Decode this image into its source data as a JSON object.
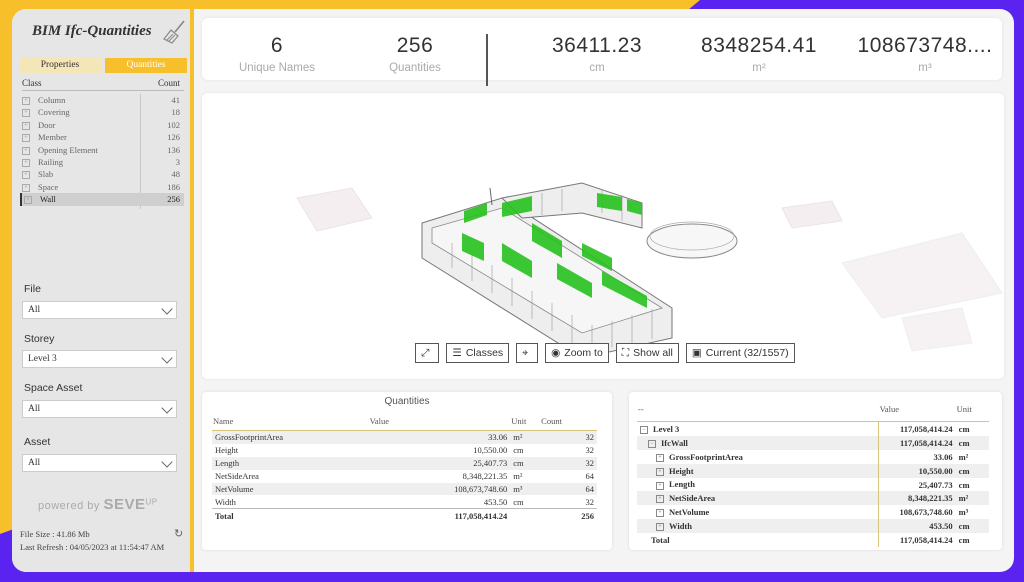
{
  "colors": {
    "accent": "#f7bf2a",
    "brand_purple": "#5a23f0",
    "highlight_green": "#27c21e"
  },
  "app": {
    "title": "BIM Ifc-Quantities"
  },
  "tabs": {
    "properties": "Properties",
    "quantities": "Quantities"
  },
  "class_table": {
    "header_class": "Class",
    "header_count": "Count",
    "rows": [
      {
        "name": "Column",
        "count": "41"
      },
      {
        "name": "Covering",
        "count": "18"
      },
      {
        "name": "Door",
        "count": "102"
      },
      {
        "name": "Member",
        "count": "126"
      },
      {
        "name": "Opening Element",
        "count": "136"
      },
      {
        "name": "Railing",
        "count": "3"
      },
      {
        "name": "Slab",
        "count": "48"
      },
      {
        "name": "Space",
        "count": "186"
      },
      {
        "name": "Wall",
        "count": "256"
      }
    ]
  },
  "filters": {
    "file": {
      "label": "File",
      "value": "All"
    },
    "storey": {
      "label": "Storey",
      "value": "Level 3"
    },
    "space_asset": {
      "label": "Space Asset",
      "value": "All"
    },
    "asset": {
      "label": "Asset",
      "value": "All"
    }
  },
  "branding": {
    "powered_by": "powered by",
    "brand": "SEVE",
    "brand_sup": "UP"
  },
  "meta": {
    "file_size": "File Size : 41.86 Mb",
    "last_refresh": "Last Refresh : 04/05/2023 at 11:54:47 AM"
  },
  "kpis": [
    {
      "value": "6",
      "label": "Unique Names"
    },
    {
      "value": "256",
      "label": "Quantities"
    },
    {
      "value": "36411.23",
      "label": "cm"
    },
    {
      "value": "8348254.41",
      "label": "m²"
    },
    {
      "value": "108673748....",
      "label": "m³"
    }
  ],
  "viewer_buttons": {
    "fit": "",
    "classes": "Classes",
    "target": "",
    "zoom": "Zoom to",
    "show_all": "Show all",
    "current": "Current (32/1557)"
  },
  "quantities_table": {
    "title": "Quantities",
    "headers": [
      "Name",
      "Value",
      "Unit",
      "Count"
    ],
    "rows": [
      [
        "GrossFootprintArea",
        "33.06",
        "m²",
        "32"
      ],
      [
        "Height",
        "10,550.00",
        "cm",
        "32"
      ],
      [
        "Length",
        "25,407.73",
        "cm",
        "32"
      ],
      [
        "NetSideArea",
        "8,348,221.35",
        "m²",
        "64"
      ],
      [
        "NetVolume",
        "108,673,748.60",
        "m³",
        "64"
      ],
      [
        "Width",
        "453.50",
        "cm",
        "32"
      ]
    ],
    "total": [
      "Total",
      "117,058,414.24",
      "",
      "256"
    ]
  },
  "matrix_table": {
    "headers": [
      "--",
      "Value",
      "Unit"
    ],
    "rows": [
      {
        "name": "Level 3",
        "value": "117,058,414.24",
        "unit": "cm"
      },
      {
        "name": "IfcWall",
        "value": "117,058,414.24",
        "unit": "cm"
      },
      {
        "name": "GrossFootprintArea",
        "value": "33.06",
        "unit": "m²"
      },
      {
        "name": "Height",
        "value": "10,550.00",
        "unit": "cm"
      },
      {
        "name": "Length",
        "value": "25,407.73",
        "unit": "cm"
      },
      {
        "name": "NetSideArea",
        "value": "8,348,221.35",
        "unit": "m²"
      },
      {
        "name": "NetVolume",
        "value": "108,673,748.60",
        "unit": "m³"
      },
      {
        "name": "Width",
        "value": "453.50",
        "unit": "cm"
      }
    ],
    "total": {
      "name": "Total",
      "value": "117,058,414.24",
      "unit": "cm"
    }
  }
}
